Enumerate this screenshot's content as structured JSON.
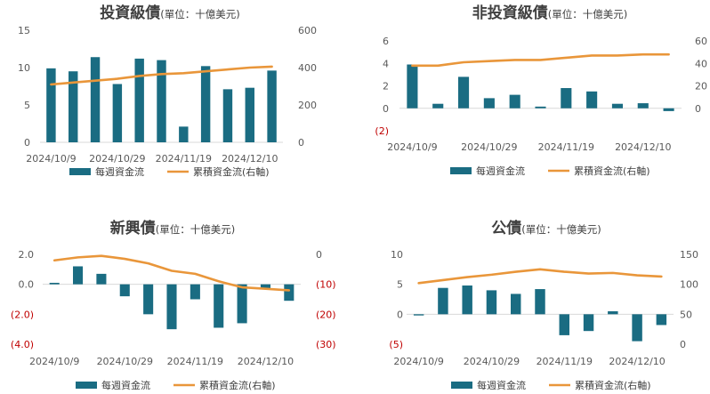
{
  "colors": {
    "bar": "#1a6c82",
    "line": "#e9963a",
    "negative_tick": "#c00000",
    "text": "#595959"
  },
  "legend": {
    "bar_label": "每週資金流",
    "line_label": "累積資金流(右軸)"
  },
  "chart_data": [
    {
      "type": "bar",
      "title": "投資級債",
      "unit": "(單位：十億美元)",
      "x_tick_labels": [
        "2024/10/9",
        "2024/10/29",
        "2024/11/19",
        "2024/12/10"
      ],
      "y_left_ticks": [
        "15",
        "10",
        "5",
        "0"
      ],
      "y_right_ticks": [
        "600",
        "400",
        "200",
        "0"
      ],
      "ylim_left": [
        0,
        15
      ],
      "ylim_right": [
        0,
        600
      ],
      "series": [
        {
          "name": "每週資金流",
          "axis": "left",
          "values": [
            9.9,
            9.5,
            11.4,
            7.8,
            11.2,
            11.0,
            2.1,
            10.2,
            7.1,
            7.3,
            9.6
          ]
        },
        {
          "name": "累積資金流(右軸)",
          "axis": "right",
          "type": "line",
          "values": [
            310,
            320,
            330,
            340,
            355,
            365,
            370,
            380,
            390,
            400,
            405
          ]
        }
      ]
    },
    {
      "type": "bar",
      "title": "非投資級債",
      "unit": "(單位：十億美元)",
      "x_tick_labels": [
        "2024/10/9",
        "2024/10/29",
        "2024/11/19",
        "2024/12/10"
      ],
      "y_left_ticks": [
        "6",
        "4",
        "2",
        "0",
        "(2)"
      ],
      "y_right_ticks": [
        "60",
        "40",
        "20",
        "0"
      ],
      "ylim_left": [
        -2,
        6
      ],
      "ylim_right": [
        -20,
        60
      ],
      "series": [
        {
          "name": "每週資金流",
          "axis": "left",
          "values": [
            3.9,
            0.4,
            2.8,
            0.9,
            1.2,
            0.15,
            1.8,
            1.5,
            0.4,
            0.45,
            -0.25
          ]
        },
        {
          "name": "累積資金流(右軸)",
          "axis": "right",
          "type": "line",
          "values": [
            38,
            38,
            41,
            42,
            43,
            43,
            45,
            47,
            47,
            48,
            48
          ]
        }
      ]
    },
    {
      "type": "bar",
      "title": "新興債",
      "unit": "(單位：十億美元)",
      "x_tick_labels": [
        "2024/10/9",
        "2024/10/29",
        "2024/11/19",
        "2024/12/10"
      ],
      "y_left_ticks": [
        "2.0",
        "0.0",
        "(2.0)",
        "(4.0)"
      ],
      "y_right_ticks": [
        "0",
        "(10)",
        "(20)",
        "(30)"
      ],
      "ylim_left": [
        -4,
        2
      ],
      "ylim_right": [
        -30,
        0
      ],
      "series": [
        {
          "name": "每週資金流",
          "axis": "left",
          "values": [
            0.1,
            1.2,
            0.7,
            -0.8,
            -2.0,
            -3.0,
            -1.0,
            -2.9,
            -2.6,
            -0.3,
            -1.1
          ]
        },
        {
          "name": "累積資金流(右軸)",
          "axis": "right",
          "type": "line",
          "values": [
            -2,
            -1,
            -0.5,
            -1.5,
            -3,
            -5.5,
            -6.5,
            -9,
            -11,
            -11.5,
            -12
          ]
        }
      ]
    },
    {
      "type": "bar",
      "title": "公債",
      "unit": "(單位：十億美元)",
      "x_tick_labels": [
        "2024/10/9",
        "2024/10/29",
        "2024/11/19",
        "2024/12/10"
      ],
      "y_left_ticks": [
        "10",
        "5",
        "0",
        "(5)"
      ],
      "y_right_ticks": [
        "150",
        "100",
        "50",
        "0"
      ],
      "ylim_left": [
        -5,
        10
      ],
      "ylim_right": [
        0,
        150
      ],
      "series": [
        {
          "name": "每週資金流",
          "axis": "left",
          "values": [
            -0.2,
            4.4,
            4.8,
            4.0,
            3.4,
            4.2,
            -3.5,
            -2.8,
            0.5,
            -4.5,
            -1.8
          ]
        },
        {
          "name": "累積資金流(右軸)",
          "axis": "right",
          "type": "line",
          "values": [
            102,
            107,
            112,
            116,
            121,
            125,
            121,
            118,
            119,
            115,
            113
          ]
        }
      ]
    }
  ]
}
